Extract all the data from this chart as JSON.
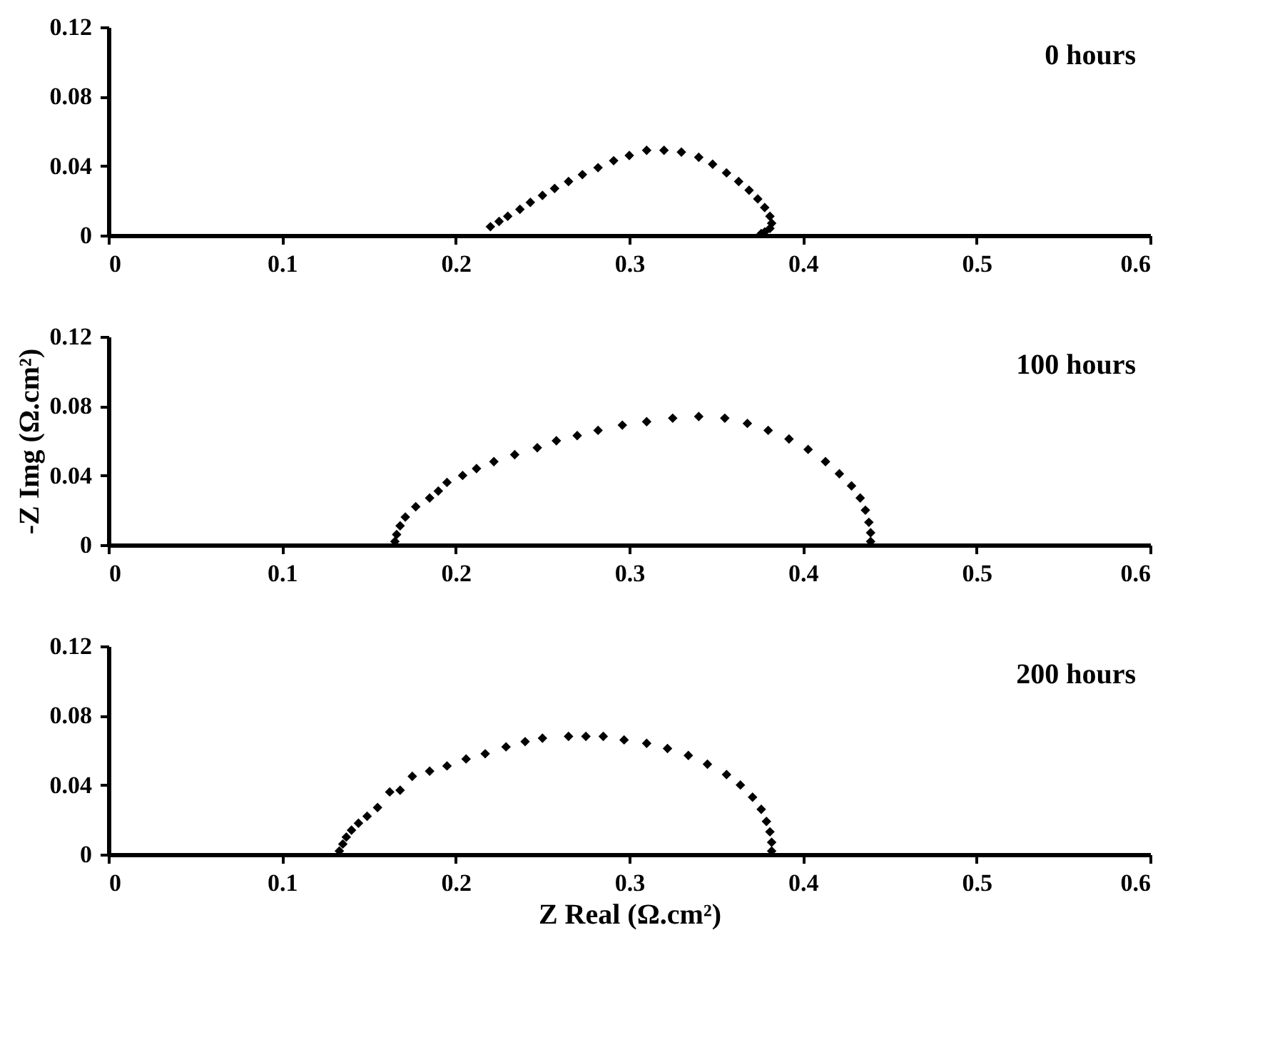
{
  "chart_data": [
    {
      "type": "scatter",
      "marker": "diamond",
      "grid": false,
      "xlim": [
        0,
        0.6
      ],
      "xticks": [
        0,
        0.1,
        0.2,
        0.3,
        0.4,
        0.5,
        0.6
      ],
      "ylim": [
        0,
        0.12
      ],
      "yticks": [
        0,
        0.04,
        0.08,
        0.12
      ],
      "annotations": [
        "0 hours"
      ],
      "x": [
        0.22,
        0.225,
        0.23,
        0.237,
        0.243,
        0.25,
        0.257,
        0.265,
        0.273,
        0.282,
        0.291,
        0.3,
        0.31,
        0.32,
        0.33,
        0.34,
        0.348,
        0.356,
        0.363,
        0.369,
        0.374,
        0.378,
        0.381,
        0.382,
        0.381,
        0.378,
        0.376
      ],
      "series": [
        {
          "color": "#000000",
          "values": [
            0.005,
            0.008,
            0.011,
            0.015,
            0.019,
            0.023,
            0.027,
            0.031,
            0.035,
            0.039,
            0.043,
            0.046,
            0.049,
            0.049,
            0.048,
            0.045,
            0.041,
            0.036,
            0.031,
            0.026,
            0.021,
            0.016,
            0.011,
            0.007,
            0.004,
            0.002,
            0.001
          ]
        }
      ]
    },
    {
      "type": "scatter",
      "marker": "diamond",
      "grid": false,
      "ylabel": "-Z Img (Ω.cm²)",
      "xlim": [
        0,
        0.6
      ],
      "xticks": [
        0,
        0.1,
        0.2,
        0.3,
        0.4,
        0.5,
        0.6
      ],
      "ylim": [
        0,
        0.12
      ],
      "yticks": [
        0,
        0.04,
        0.08,
        0.12
      ],
      "annotations": [
        "100 hours"
      ],
      "x": [
        0.165,
        0.166,
        0.168,
        0.171,
        0.177,
        0.185,
        0.19,
        0.195,
        0.204,
        0.212,
        0.222,
        0.234,
        0.247,
        0.258,
        0.27,
        0.282,
        0.296,
        0.31,
        0.325,
        0.34,
        0.355,
        0.368,
        0.38,
        0.392,
        0.403,
        0.413,
        0.421,
        0.428,
        0.433,
        0.436,
        0.438,
        0.439,
        0.439
      ],
      "series": [
        {
          "color": "#000000",
          "values": [
            0.002,
            0.006,
            0.011,
            0.016,
            0.022,
            0.027,
            0.031,
            0.036,
            0.04,
            0.044,
            0.048,
            0.052,
            0.056,
            0.06,
            0.063,
            0.066,
            0.069,
            0.071,
            0.073,
            0.074,
            0.073,
            0.07,
            0.066,
            0.061,
            0.055,
            0.048,
            0.041,
            0.034,
            0.027,
            0.02,
            0.013,
            0.007,
            0.002
          ]
        }
      ]
    },
    {
      "type": "scatter",
      "marker": "diamond",
      "grid": false,
      "xlabel": "Z Real (Ω.cm²)",
      "xlim": [
        0,
        0.6
      ],
      "xticks": [
        0,
        0.1,
        0.2,
        0.3,
        0.4,
        0.5,
        0.6
      ],
      "ylim": [
        0,
        0.12
      ],
      "yticks": [
        0,
        0.04,
        0.08,
        0.12
      ],
      "annotations": [
        "200 hours"
      ],
      "x": [
        0.133,
        0.135,
        0.137,
        0.14,
        0.144,
        0.149,
        0.155,
        0.162,
        0.168,
        0.175,
        0.185,
        0.195,
        0.206,
        0.217,
        0.229,
        0.24,
        0.25,
        0.265,
        0.275,
        0.285,
        0.297,
        0.31,
        0.322,
        0.334,
        0.345,
        0.356,
        0.364,
        0.371,
        0.376,
        0.379,
        0.381,
        0.382,
        0.382
      ],
      "series": [
        {
          "color": "#000000",
          "values": [
            0.002,
            0.006,
            0.01,
            0.014,
            0.018,
            0.022,
            0.027,
            0.036,
            0.037,
            0.045,
            0.048,
            0.051,
            0.055,
            0.058,
            0.062,
            0.065,
            0.067,
            0.068,
            0.068,
            0.068,
            0.066,
            0.064,
            0.061,
            0.057,
            0.052,
            0.046,
            0.04,
            0.033,
            0.026,
            0.019,
            0.013,
            0.007,
            0.002
          ]
        }
      ]
    }
  ]
}
